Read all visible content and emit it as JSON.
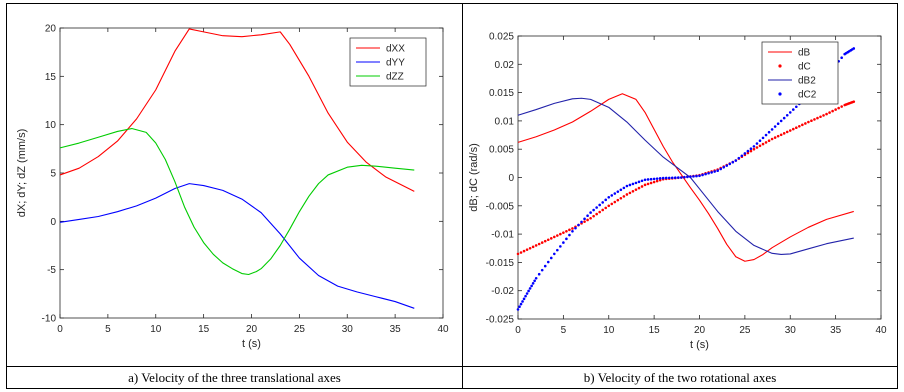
{
  "captions": {
    "a": "a) Velocity of the three translational axes",
    "b": "b) Velocity of the two rotational axes"
  },
  "chart_data": [
    {
      "type": "line",
      "xlabel": "t (s)",
      "ylabel": "dX; dY; dZ (mm/s)",
      "xlim": [
        0,
        40
      ],
      "ylim": [
        -10,
        20
      ],
      "xticks": [
        0,
        5,
        10,
        15,
        20,
        25,
        30,
        35,
        40
      ],
      "yticks": [
        -10,
        -5,
        0,
        5,
        10,
        15,
        20
      ],
      "grid": false,
      "legend_position": "top-right",
      "series": [
        {
          "name": "dXX",
          "color": "#ff0000",
          "style": "line",
          "x": [
            0,
            2,
            4,
            6,
            8,
            10,
            12,
            13.5,
            15,
            17,
            19,
            21,
            23,
            24,
            26,
            28,
            30,
            32,
            34,
            37
          ],
          "y": [
            4.8,
            5.5,
            6.7,
            8.3,
            10.6,
            13.6,
            17.6,
            19.9,
            19.6,
            19.2,
            19.1,
            19.3,
            19.6,
            18.3,
            15.0,
            11.2,
            8.2,
            6.1,
            4.6,
            3.1
          ]
        },
        {
          "name": "dYY",
          "color": "#0000ff",
          "style": "line",
          "x": [
            0,
            2,
            4,
            6,
            8,
            10,
            12,
            13.5,
            15,
            17,
            19,
            21,
            23,
            25,
            27,
            29,
            31,
            33,
            35,
            37
          ],
          "y": [
            -0.1,
            0.2,
            0.5,
            1.0,
            1.6,
            2.4,
            3.4,
            3.9,
            3.7,
            3.2,
            2.3,
            0.9,
            -1.3,
            -3.8,
            -5.6,
            -6.7,
            -7.3,
            -7.8,
            -8.3,
            -9.0
          ]
        },
        {
          "name": "dZZ",
          "color": "#00cc00",
          "style": "line",
          "x": [
            0,
            2,
            4,
            6,
            7.5,
            9,
            10,
            11,
            12,
            13,
            14,
            15,
            16,
            17,
            18,
            19,
            19.7,
            20.5,
            21,
            22,
            23,
            24,
            25,
            26,
            27,
            28,
            30,
            31.5,
            33,
            35,
            37
          ],
          "y": [
            7.6,
            8.1,
            8.7,
            9.3,
            9.6,
            9.2,
            8.1,
            6.4,
            4.1,
            1.5,
            -0.6,
            -2.2,
            -3.4,
            -4.3,
            -4.9,
            -5.4,
            -5.5,
            -5.2,
            -4.9,
            -3.9,
            -2.5,
            -0.8,
            1.0,
            2.6,
            3.9,
            4.8,
            5.6,
            5.8,
            5.7,
            5.5,
            5.3
          ]
        }
      ]
    },
    {
      "type": "line",
      "xlabel": "t (s)",
      "ylabel": "dB; dC (rad/s)",
      "xlim": [
        0,
        40
      ],
      "ylim": [
        -0.025,
        0.025
      ],
      "xticks": [
        0,
        5,
        10,
        15,
        20,
        25,
        30,
        35,
        40
      ],
      "yticks": [
        -0.025,
        -0.02,
        -0.015,
        -0.01,
        -0.005,
        0,
        0.005,
        0.01,
        0.015,
        0.02,
        0.025
      ],
      "grid": false,
      "legend_position": "top-right",
      "series": [
        {
          "name": "dB",
          "color": "#ff0000",
          "style": "line",
          "x": [
            0,
            2,
            4,
            6,
            8,
            10,
            11.5,
            13,
            14,
            15,
            16,
            17,
            18,
            19,
            20,
            21,
            22,
            23,
            24,
            25,
            26,
            27,
            28,
            30,
            32,
            34,
            37
          ],
          "y": [
            0.0062,
            0.0072,
            0.0084,
            0.0098,
            0.0117,
            0.0138,
            0.0148,
            0.0138,
            0.0115,
            0.0085,
            0.0055,
            0.0028,
            0.0005,
            -0.0018,
            -0.004,
            -0.0064,
            -0.009,
            -0.0118,
            -0.014,
            -0.0148,
            -0.0145,
            -0.0136,
            -0.0124,
            -0.0105,
            -0.0088,
            -0.0074,
            -0.006
          ]
        },
        {
          "name": "dC",
          "color": "#ff0000",
          "style": "dots",
          "x": [
            0,
            2,
            4,
            6,
            8,
            10,
            12,
            14,
            16,
            18,
            20,
            22,
            24,
            26,
            28,
            30,
            32,
            34,
            36,
            37
          ],
          "y": [
            -0.0135,
            -0.012,
            -0.0105,
            -0.009,
            -0.0072,
            -0.005,
            -0.003,
            -0.0013,
            -0.0003,
            0.0,
            0.0004,
            0.0014,
            0.003,
            0.005,
            0.0068,
            0.0083,
            0.0098,
            0.0112,
            0.0128,
            0.0134
          ]
        },
        {
          "name": "dB2",
          "color": "#2222aa",
          "style": "line",
          "x": [
            0,
            2,
            4,
            6,
            7,
            8,
            10,
            12,
            14,
            16,
            18,
            19,
            20,
            22,
            24,
            26,
            28,
            29,
            30,
            32,
            34,
            37
          ],
          "y": [
            0.011,
            0.012,
            0.0131,
            0.0139,
            0.014,
            0.0138,
            0.0124,
            0.0098,
            0.0066,
            0.0036,
            0.0012,
            0.0,
            -0.002,
            -0.006,
            -0.0095,
            -0.012,
            -0.0134,
            -0.0136,
            -0.0135,
            -0.0126,
            -0.0117,
            -0.0107
          ]
        },
        {
          "name": "dC2",
          "color": "#0000ff",
          "style": "dots",
          "x": [
            0,
            1,
            2,
            4,
            6,
            8,
            10,
            12,
            14,
            16,
            18,
            20,
            22,
            24,
            26,
            28,
            30,
            32,
            34,
            36,
            37
          ],
          "y": [
            -0.0233,
            -0.0205,
            -0.0178,
            -0.0135,
            -0.0095,
            -0.0062,
            -0.0035,
            -0.0015,
            -0.0004,
            -0.0001,
            0.0,
            0.0003,
            0.0012,
            0.003,
            0.0055,
            0.0085,
            0.0115,
            0.0145,
            0.018,
            0.0218,
            0.0228
          ]
        }
      ]
    }
  ]
}
